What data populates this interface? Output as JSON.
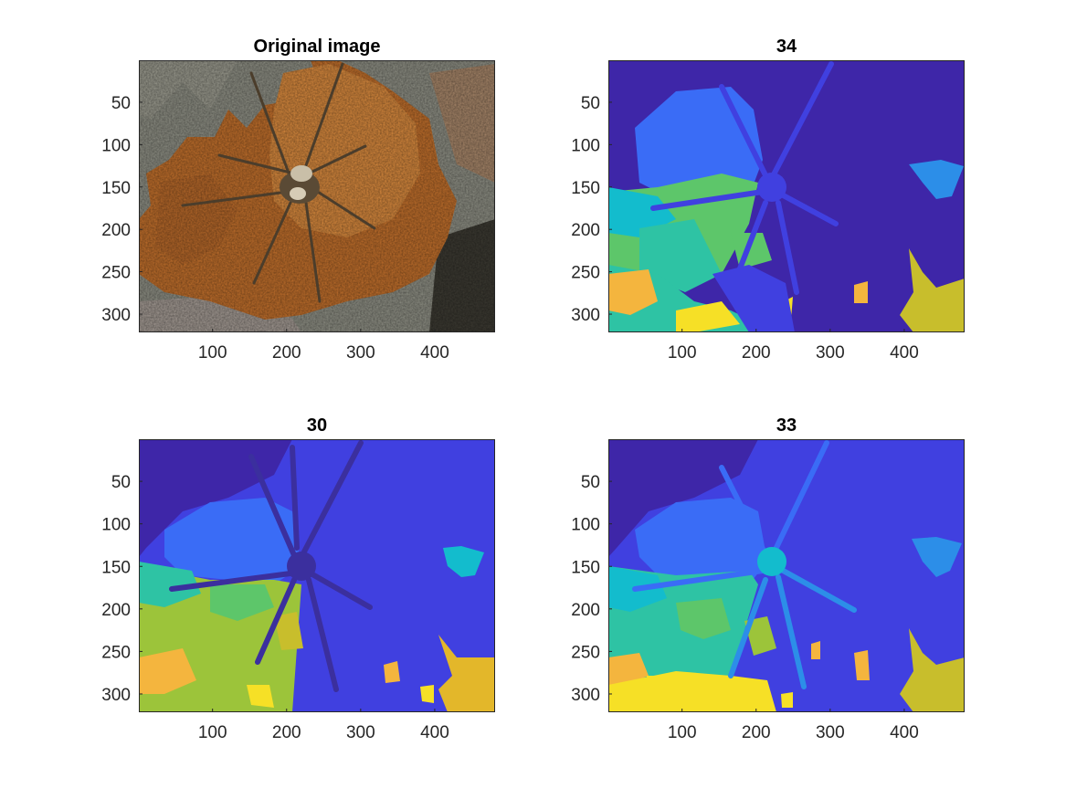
{
  "chart_data": [
    {
      "type": "image",
      "title": "Original image",
      "xticks": [
        100,
        200,
        300,
        400
      ],
      "yticks": [
        50,
        100,
        150,
        200,
        250,
        300
      ],
      "xlim": [
        0.5,
        481.5
      ],
      "ylim": [
        0.5,
        321.5
      ],
      "y_reversed": true,
      "content": "photo"
    },
    {
      "type": "image",
      "title": "34",
      "xticks": [
        100,
        200,
        300,
        400
      ],
      "yticks": [
        50,
        100,
        150,
        200,
        250,
        300
      ],
      "xlim": [
        0.5,
        481.5
      ],
      "ylim": [
        0.5,
        321.5
      ],
      "y_reversed": true,
      "content": "segmentation"
    },
    {
      "type": "image",
      "title": "30",
      "xticks": [
        100,
        200,
        300,
        400
      ],
      "yticks": [
        50,
        100,
        150,
        200,
        250,
        300
      ],
      "xlim": [
        0.5,
        481.5
      ],
      "ylim": [
        0.5,
        321.5
      ],
      "y_reversed": true,
      "content": "segmentation"
    },
    {
      "type": "image",
      "title": "33",
      "xticks": [
        100,
        200,
        300,
        400
      ],
      "yticks": [
        50,
        100,
        150,
        200,
        250,
        300
      ],
      "xlim": [
        0.5,
        481.5
      ],
      "ylim": [
        0.5,
        321.5
      ],
      "y_reversed": true,
      "content": "segmentation"
    }
  ],
  "palette": {
    "dark_blue": "#3e26a8",
    "blue": "#4040e0",
    "light_blue": "#3a6cf6",
    "sky": "#2c8ee8",
    "cyan": "#13bccd",
    "teal": "#2ec3a4",
    "green": "#5dc66a",
    "lime": "#9cc43a",
    "olive": "#c8be2c",
    "orange": "#f4b53e",
    "gold": "#e3b72a",
    "yellow": "#f6e026",
    "spider_dark": "#3b2f9e",
    "rock_grey": "#8e8f84",
    "lichen_orange": "#c2702c",
    "lichen_light": "#d98a3e",
    "spider_brown": "#5a4a35"
  }
}
